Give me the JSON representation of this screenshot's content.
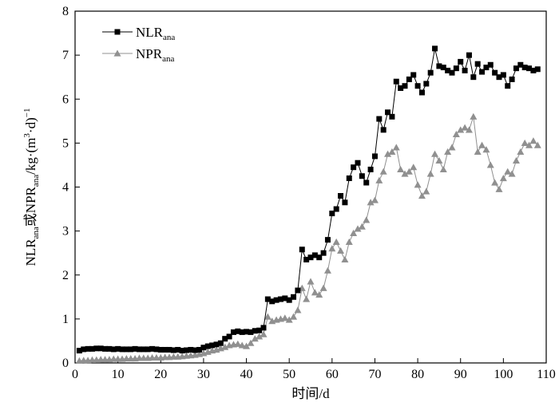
{
  "chart_data": {
    "type": "line",
    "xlabel": "时间/d",
    "ylabel": {
      "parts": [
        {
          "text": "NLR",
          "sub": false
        },
        {
          "text": "ana",
          "sub": true
        },
        {
          "text": "或NPR",
          "sub": false
        },
        {
          "text": "ana",
          "sub": true
        },
        {
          "text": "/kg·(m",
          "sub": false
        },
        {
          "text": "3",
          "sup": true
        },
        {
          "text": "·d)",
          "sub": false
        },
        {
          "text": "−1",
          "sup": true
        }
      ]
    },
    "xlim": [
      0,
      110
    ],
    "ylim": [
      0,
      8
    ],
    "xticks": [
      0,
      10,
      20,
      30,
      40,
      50,
      60,
      70,
      80,
      90,
      100,
      110
    ],
    "yticks": [
      0,
      1,
      2,
      3,
      4,
      5,
      6,
      7,
      8
    ],
    "grid": false,
    "legend_position": "top-left",
    "series": [
      {
        "name": "NLR",
        "name_sub": "ana",
        "color": "#000000",
        "marker": "square",
        "x": [
          1,
          2,
          3,
          4,
          5,
          6,
          7,
          8,
          9,
          10,
          11,
          12,
          13,
          14,
          15,
          16,
          17,
          18,
          19,
          20,
          21,
          22,
          23,
          24,
          25,
          26,
          27,
          28,
          29,
          30,
          31,
          32,
          33,
          34,
          35,
          36,
          37,
          38,
          39,
          40,
          41,
          42,
          43,
          44,
          45,
          46,
          47,
          48,
          49,
          50,
          51,
          52,
          53,
          54,
          55,
          56,
          57,
          58,
          59,
          60,
          61,
          62,
          63,
          64,
          65,
          66,
          67,
          68,
          69,
          70,
          71,
          72,
          73,
          74,
          75,
          76,
          77,
          78,
          79,
          80,
          81,
          82,
          83,
          84,
          85,
          86,
          87,
          88,
          89,
          90,
          91,
          92,
          93,
          94,
          95,
          96,
          97,
          98,
          99,
          100,
          101,
          102,
          103,
          104,
          105,
          106,
          107,
          108
        ],
        "y": [
          0.28,
          0.31,
          0.32,
          0.32,
          0.33,
          0.33,
          0.32,
          0.32,
          0.31,
          0.32,
          0.31,
          0.31,
          0.31,
          0.32,
          0.31,
          0.31,
          0.31,
          0.32,
          0.31,
          0.3,
          0.3,
          0.3,
          0.29,
          0.3,
          0.28,
          0.29,
          0.3,
          0.29,
          0.3,
          0.35,
          0.38,
          0.4,
          0.42,
          0.45,
          0.55,
          0.6,
          0.7,
          0.72,
          0.7,
          0.71,
          0.7,
          0.73,
          0.74,
          0.8,
          1.45,
          1.4,
          1.43,
          1.45,
          1.47,
          1.43,
          1.5,
          1.65,
          2.58,
          2.35,
          2.4,
          2.45,
          2.4,
          2.5,
          2.8,
          3.4,
          3.5,
          3.8,
          3.65,
          4.2,
          4.45,
          4.55,
          4.25,
          4.1,
          4.4,
          4.7,
          5.55,
          5.3,
          5.7,
          5.6,
          6.4,
          6.25,
          6.3,
          6.45,
          6.55,
          6.3,
          6.15,
          6.35,
          6.6,
          7.15,
          6.75,
          6.72,
          6.65,
          6.6,
          6.7,
          6.85,
          6.65,
          7.0,
          6.5,
          6.8,
          6.62,
          6.72,
          6.78,
          6.6,
          6.5,
          6.55,
          6.3,
          6.45,
          6.7,
          6.78,
          6.72,
          6.7,
          6.65,
          6.68
        ]
      },
      {
        "name": "NPR",
        "name_sub": "ana",
        "color": "#909090",
        "marker": "triangle",
        "x": [
          1,
          2,
          3,
          4,
          5,
          6,
          7,
          8,
          9,
          10,
          11,
          12,
          13,
          14,
          15,
          16,
          17,
          18,
          19,
          20,
          21,
          22,
          23,
          24,
          25,
          26,
          27,
          28,
          29,
          30,
          31,
          32,
          33,
          34,
          35,
          36,
          37,
          38,
          39,
          40,
          41,
          42,
          43,
          44,
          45,
          46,
          47,
          48,
          49,
          50,
          51,
          52,
          53,
          54,
          55,
          56,
          57,
          58,
          59,
          60,
          61,
          62,
          63,
          64,
          65,
          66,
          67,
          68,
          69,
          70,
          71,
          72,
          73,
          74,
          75,
          76,
          77,
          78,
          79,
          80,
          81,
          82,
          83,
          84,
          85,
          86,
          87,
          88,
          89,
          90,
          91,
          92,
          93,
          94,
          95,
          96,
          97,
          98,
          99,
          100,
          101,
          102,
          103,
          104,
          105,
          106,
          107,
          108
        ],
        "y": [
          0.05,
          0.06,
          0.06,
          0.07,
          0.07,
          0.08,
          0.08,
          0.08,
          0.09,
          0.09,
          0.09,
          0.1,
          0.1,
          0.1,
          0.11,
          0.11,
          0.11,
          0.12,
          0.12,
          0.12,
          0.13,
          0.13,
          0.14,
          0.14,
          0.15,
          0.16,
          0.17,
          0.18,
          0.2,
          0.22,
          0.25,
          0.28,
          0.3,
          0.33,
          0.36,
          0.4,
          0.42,
          0.43,
          0.4,
          0.38,
          0.45,
          0.55,
          0.6,
          0.65,
          1.05,
          0.95,
          0.98,
          1.0,
          1.02,
          0.98,
          1.05,
          1.2,
          1.7,
          1.45,
          1.85,
          1.6,
          1.55,
          1.7,
          2.1,
          2.6,
          2.75,
          2.55,
          2.35,
          2.75,
          2.95,
          3.05,
          3.1,
          3.25,
          3.65,
          3.7,
          4.15,
          4.35,
          4.75,
          4.8,
          4.9,
          4.4,
          4.3,
          4.35,
          4.45,
          4.05,
          3.8,
          3.9,
          4.3,
          4.75,
          4.6,
          4.4,
          4.8,
          4.9,
          5.2,
          5.3,
          5.35,
          5.3,
          5.6,
          4.8,
          4.95,
          4.85,
          4.5,
          4.1,
          3.95,
          4.2,
          4.35,
          4.3,
          4.6,
          4.8,
          5.0,
          4.95,
          5.05,
          4.95
        ]
      }
    ]
  }
}
